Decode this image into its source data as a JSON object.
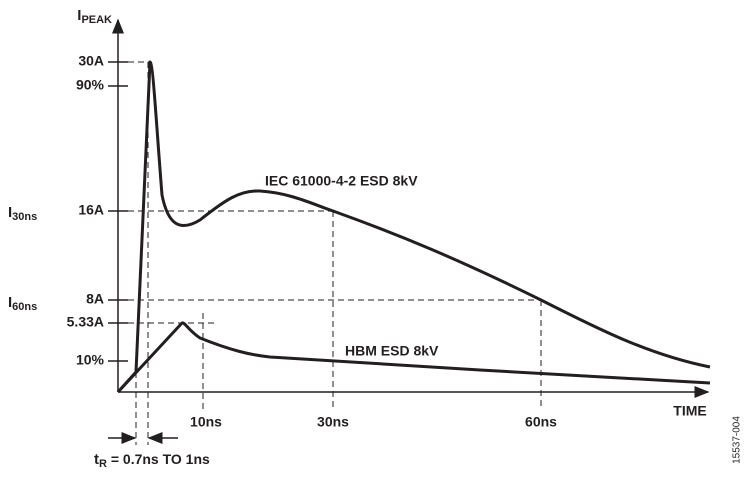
{
  "y_axis": {
    "title": "I",
    "title_sub": "PEAK",
    "labels": [
      "30A",
      "90%",
      "16A",
      "8A",
      "5.33A",
      "10%"
    ],
    "side_labels": [
      {
        "main": "I",
        "sub": "30ns"
      },
      {
        "main": "I",
        "sub": "60ns"
      }
    ]
  },
  "x_axis": {
    "title": "TIME",
    "labels": [
      "10ns",
      "30ns",
      "60ns"
    ]
  },
  "curves": [
    "IEC 61000-4-2 ESD 8kV",
    "HBM ESD 8kV"
  ],
  "rise_time": {
    "main": "t",
    "sub": "R",
    "text": " = 0.7ns TO 1ns"
  },
  "figure_id": "15537-004"
}
